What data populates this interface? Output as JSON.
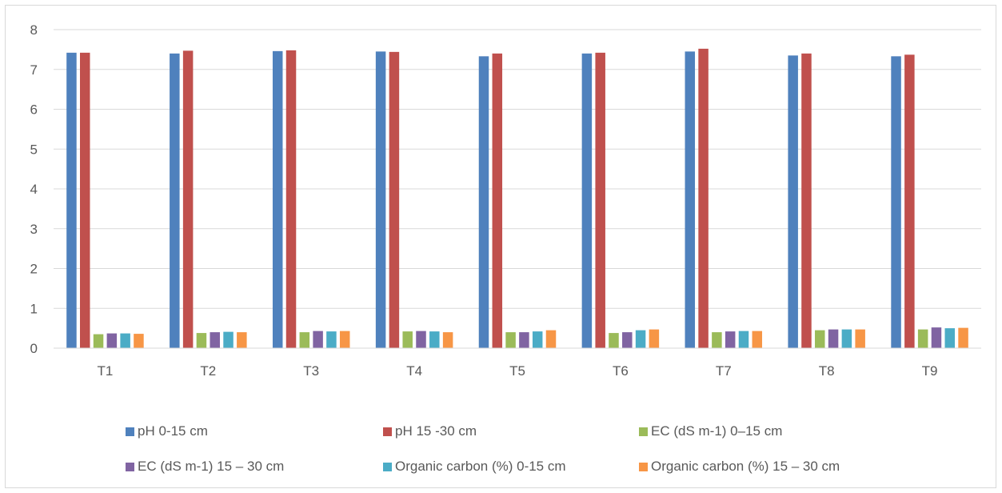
{
  "chart_data": {
    "type": "bar",
    "categories": [
      "T1",
      "T2",
      "T3",
      "T4",
      "T5",
      "T6",
      "T7",
      "T8",
      "T9"
    ],
    "ylim": [
      0,
      8
    ],
    "yticks": [
      "0",
      "1",
      "2",
      "3",
      "4",
      "5",
      "6",
      "7",
      "8"
    ],
    "grid": true,
    "legend_position": "bottom",
    "series": [
      {
        "name": "pH 0-15 cm",
        "color": "#4f81bd",
        "values": [
          7.42,
          7.4,
          7.46,
          7.45,
          7.33,
          7.4,
          7.45,
          7.35,
          7.33
        ]
      },
      {
        "name": "pH 15 -30 cm",
        "color": "#c0504d",
        "values": [
          7.42,
          7.47,
          7.48,
          7.44,
          7.4,
          7.42,
          7.52,
          7.4,
          7.37
        ]
      },
      {
        "name": "EC (dS m-1) 0–15 cm",
        "color": "#9bbb59",
        "values": [
          0.35,
          0.38,
          0.4,
          0.42,
          0.4,
          0.38,
          0.4,
          0.45,
          0.47
        ]
      },
      {
        "name": "EC (dS m-1) 15 – 30 cm",
        "color": "#8064a2",
        "values": [
          0.37,
          0.4,
          0.43,
          0.43,
          0.4,
          0.4,
          0.42,
          0.47,
          0.52
        ]
      },
      {
        "name": "Organic carbon (%) 0-15 cm",
        "color": "#4bacc6",
        "values": [
          0.37,
          0.41,
          0.42,
          0.42,
          0.42,
          0.45,
          0.43,
          0.47,
          0.5
        ]
      },
      {
        "name": "Organic carbon (%) 15 – 30 cm",
        "color": "#f79646",
        "values": [
          0.36,
          0.4,
          0.43,
          0.4,
          0.45,
          0.47,
          0.43,
          0.47,
          0.51
        ]
      }
    ]
  }
}
